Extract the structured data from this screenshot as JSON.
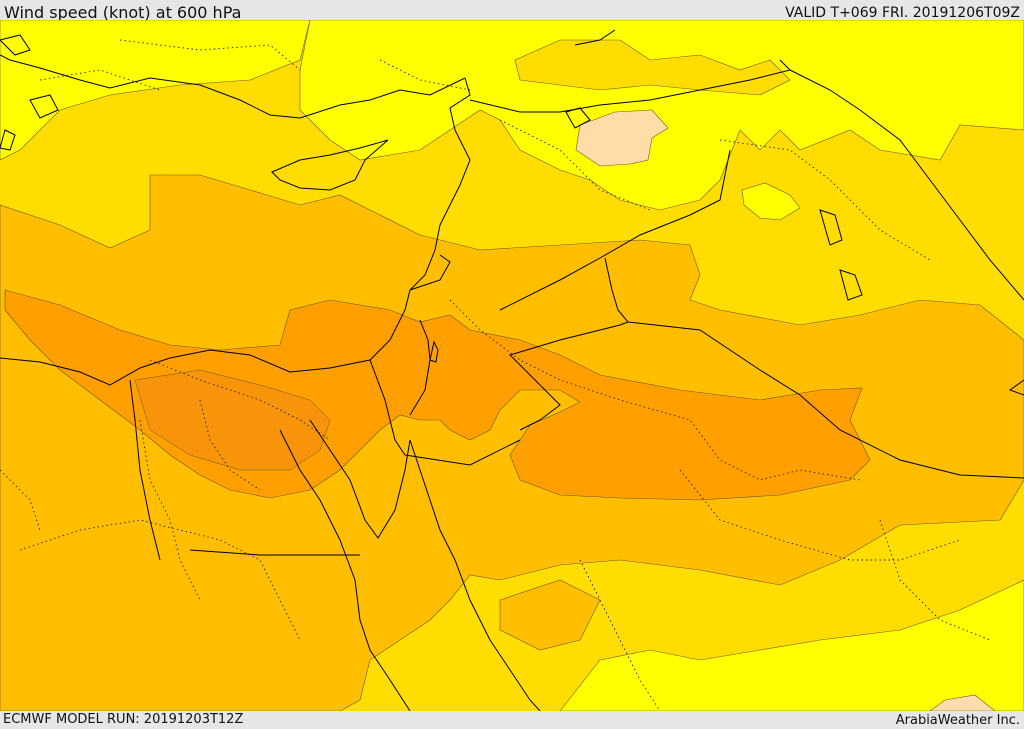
{
  "header": {
    "title": "Wind speed (knot) at 600 hPa",
    "valid": "VALID T+069 FRI. 20191206T09Z"
  },
  "footer": {
    "model_run": "ECMWF MODEL RUN: 20191203T12Z",
    "credit": "ArabiaWeather Inc."
  },
  "colors": {
    "band_lightest": "#ffdca8",
    "band_yellow": "#ffff00",
    "band_gold": "#ffdd00",
    "band_amber": "#ffbf00",
    "band_orange": "#ff9f00",
    "band_dark_orange": "#f08a10",
    "coastline": "#000000",
    "border": "#000000",
    "contour": "#6a5a2a"
  }
}
